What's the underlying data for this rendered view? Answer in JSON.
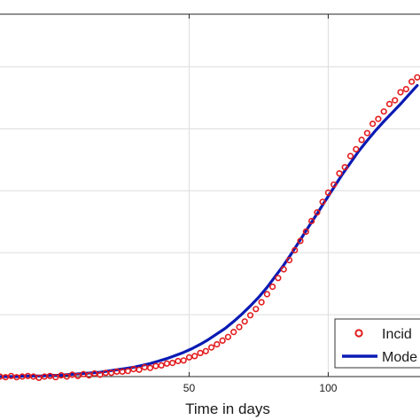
{
  "chart_data": {
    "type": "line",
    "title": "",
    "xlabel": "Time in days",
    "ylabel": "",
    "xlim": [
      -18,
      133
    ],
    "ylim": [
      0,
      0.585
    ],
    "x_ticks": [
      50,
      100
    ],
    "x_tick_labels": [
      "50",
      "100"
    ],
    "y_gridlines": [
      0.1,
      0.2,
      0.3,
      0.4,
      0.5
    ],
    "grid": true,
    "legend": {
      "placement": "bottom-right",
      "entries": [
        "Incid",
        "Mode"
      ]
    },
    "colors": {
      "observed": "#e31a1c",
      "model": "#0a1ab4"
    },
    "series": [
      {
        "name": "Incid",
        "style": "markers",
        "x": [
          -18,
          -16,
          -14,
          -12,
          -10,
          -8,
          -6,
          -4,
          -2,
          0,
          2,
          4,
          6,
          8,
          10,
          12,
          14,
          16,
          18,
          20,
          22,
          24,
          26,
          28,
          30,
          32,
          34,
          36,
          38,
          40,
          42,
          44,
          46,
          48,
          50,
          52,
          54,
          56,
          58,
          60,
          62,
          64,
          66,
          68,
          70,
          72,
          74,
          76,
          78,
          80,
          82,
          84,
          86,
          88,
          90,
          92,
          94,
          96,
          98,
          100,
          102,
          104,
          106,
          108,
          110,
          112,
          114,
          116,
          118,
          120,
          122,
          124,
          126,
          128,
          130,
          132
        ],
        "values": [
          0.0,
          -0.001,
          0.001,
          -0.001,
          0.0,
          0.001,
          0.0,
          -0.002,
          0.0,
          0.001,
          -0.001,
          0.002,
          0.0,
          0.003,
          0.001,
          0.004,
          0.002,
          0.005,
          0.003,
          0.006,
          0.006,
          0.008,
          0.008,
          0.009,
          0.012,
          0.011,
          0.015,
          0.014,
          0.017,
          0.018,
          0.021,
          0.022,
          0.025,
          0.026,
          0.031,
          0.033,
          0.038,
          0.041,
          0.047,
          0.052,
          0.058,
          0.064,
          0.072,
          0.08,
          0.089,
          0.099,
          0.109,
          0.12,
          0.133,
          0.145,
          0.159,
          0.173,
          0.188,
          0.204,
          0.219,
          0.234,
          0.251,
          0.265,
          0.282,
          0.297,
          0.31,
          0.328,
          0.338,
          0.356,
          0.367,
          0.382,
          0.393,
          0.408,
          0.416,
          0.428,
          0.44,
          0.446,
          0.459,
          0.464,
          0.476,
          0.483
        ]
      },
      {
        "name": "Mode",
        "style": "line",
        "x": [
          -18,
          -15,
          -12,
          -9,
          -6,
          -3,
          0,
          3,
          6,
          9,
          12,
          15,
          18,
          21,
          24,
          27,
          30,
          33,
          36,
          39,
          42,
          45,
          48,
          51,
          54,
          57,
          60,
          63,
          66,
          69,
          72,
          75,
          78,
          81,
          84,
          87,
          90,
          93,
          96,
          99,
          102,
          105,
          108,
          111,
          114,
          117,
          120,
          123,
          126,
          129,
          132
        ],
        "values": [
          0.0,
          0.0,
          0.0,
          0.001,
          0.001,
          0.001,
          0.002,
          0.002,
          0.003,
          0.004,
          0.005,
          0.006,
          0.007,
          0.009,
          0.011,
          0.013,
          0.015,
          0.018,
          0.021,
          0.025,
          0.029,
          0.034,
          0.039,
          0.045,
          0.052,
          0.06,
          0.069,
          0.078,
          0.089,
          0.101,
          0.114,
          0.128,
          0.144,
          0.162,
          0.18,
          0.2,
          0.221,
          0.242,
          0.263,
          0.284,
          0.305,
          0.326,
          0.345,
          0.364,
          0.381,
          0.397,
          0.412,
          0.426,
          0.44,
          0.455,
          0.47
        ]
      }
    ]
  }
}
